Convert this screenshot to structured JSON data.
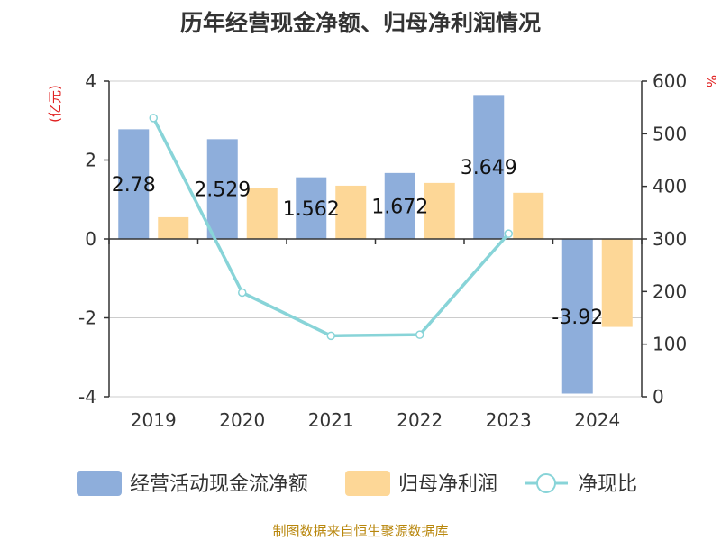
{
  "title": "历年经营现金净额、归母净利润情况",
  "source": "制图数据来自恒生聚源数据库",
  "chart_data": {
    "type": "bar",
    "categories": [
      "2019",
      "2020",
      "2021",
      "2022",
      "2023",
      "2024"
    ],
    "series": [
      {
        "name": "经营活动现金流净额",
        "type": "bar",
        "axis": "left",
        "color": "#8eaedb",
        "values": [
          2.78,
          2.529,
          1.562,
          1.672,
          3.649,
          -3.92
        ],
        "labels": [
          "2.78",
          "2.529",
          "1.562",
          "1.672",
          "3.649",
          "-3.92"
        ]
      },
      {
        "name": "归母净利润",
        "type": "bar",
        "axis": "left",
        "color": "#fdd797",
        "values": [
          0.55,
          1.28,
          1.35,
          1.42,
          1.17,
          -2.23
        ]
      },
      {
        "name": "净现比",
        "type": "line",
        "axis": "right",
        "color": "#88d4d8",
        "values": [
          530,
          198,
          116,
          118,
          310,
          null
        ]
      }
    ],
    "left_axis": {
      "label": "(亿元)",
      "ylim": [
        -4,
        4
      ],
      "ticks": [
        -4,
        -2,
        0,
        2,
        4
      ]
    },
    "right_axis": {
      "label": "%",
      "ylim": [
        0,
        600
      ],
      "ticks": [
        0,
        100,
        200,
        300,
        400,
        500,
        600
      ]
    },
    "grid": true,
    "legend": "bottom"
  }
}
